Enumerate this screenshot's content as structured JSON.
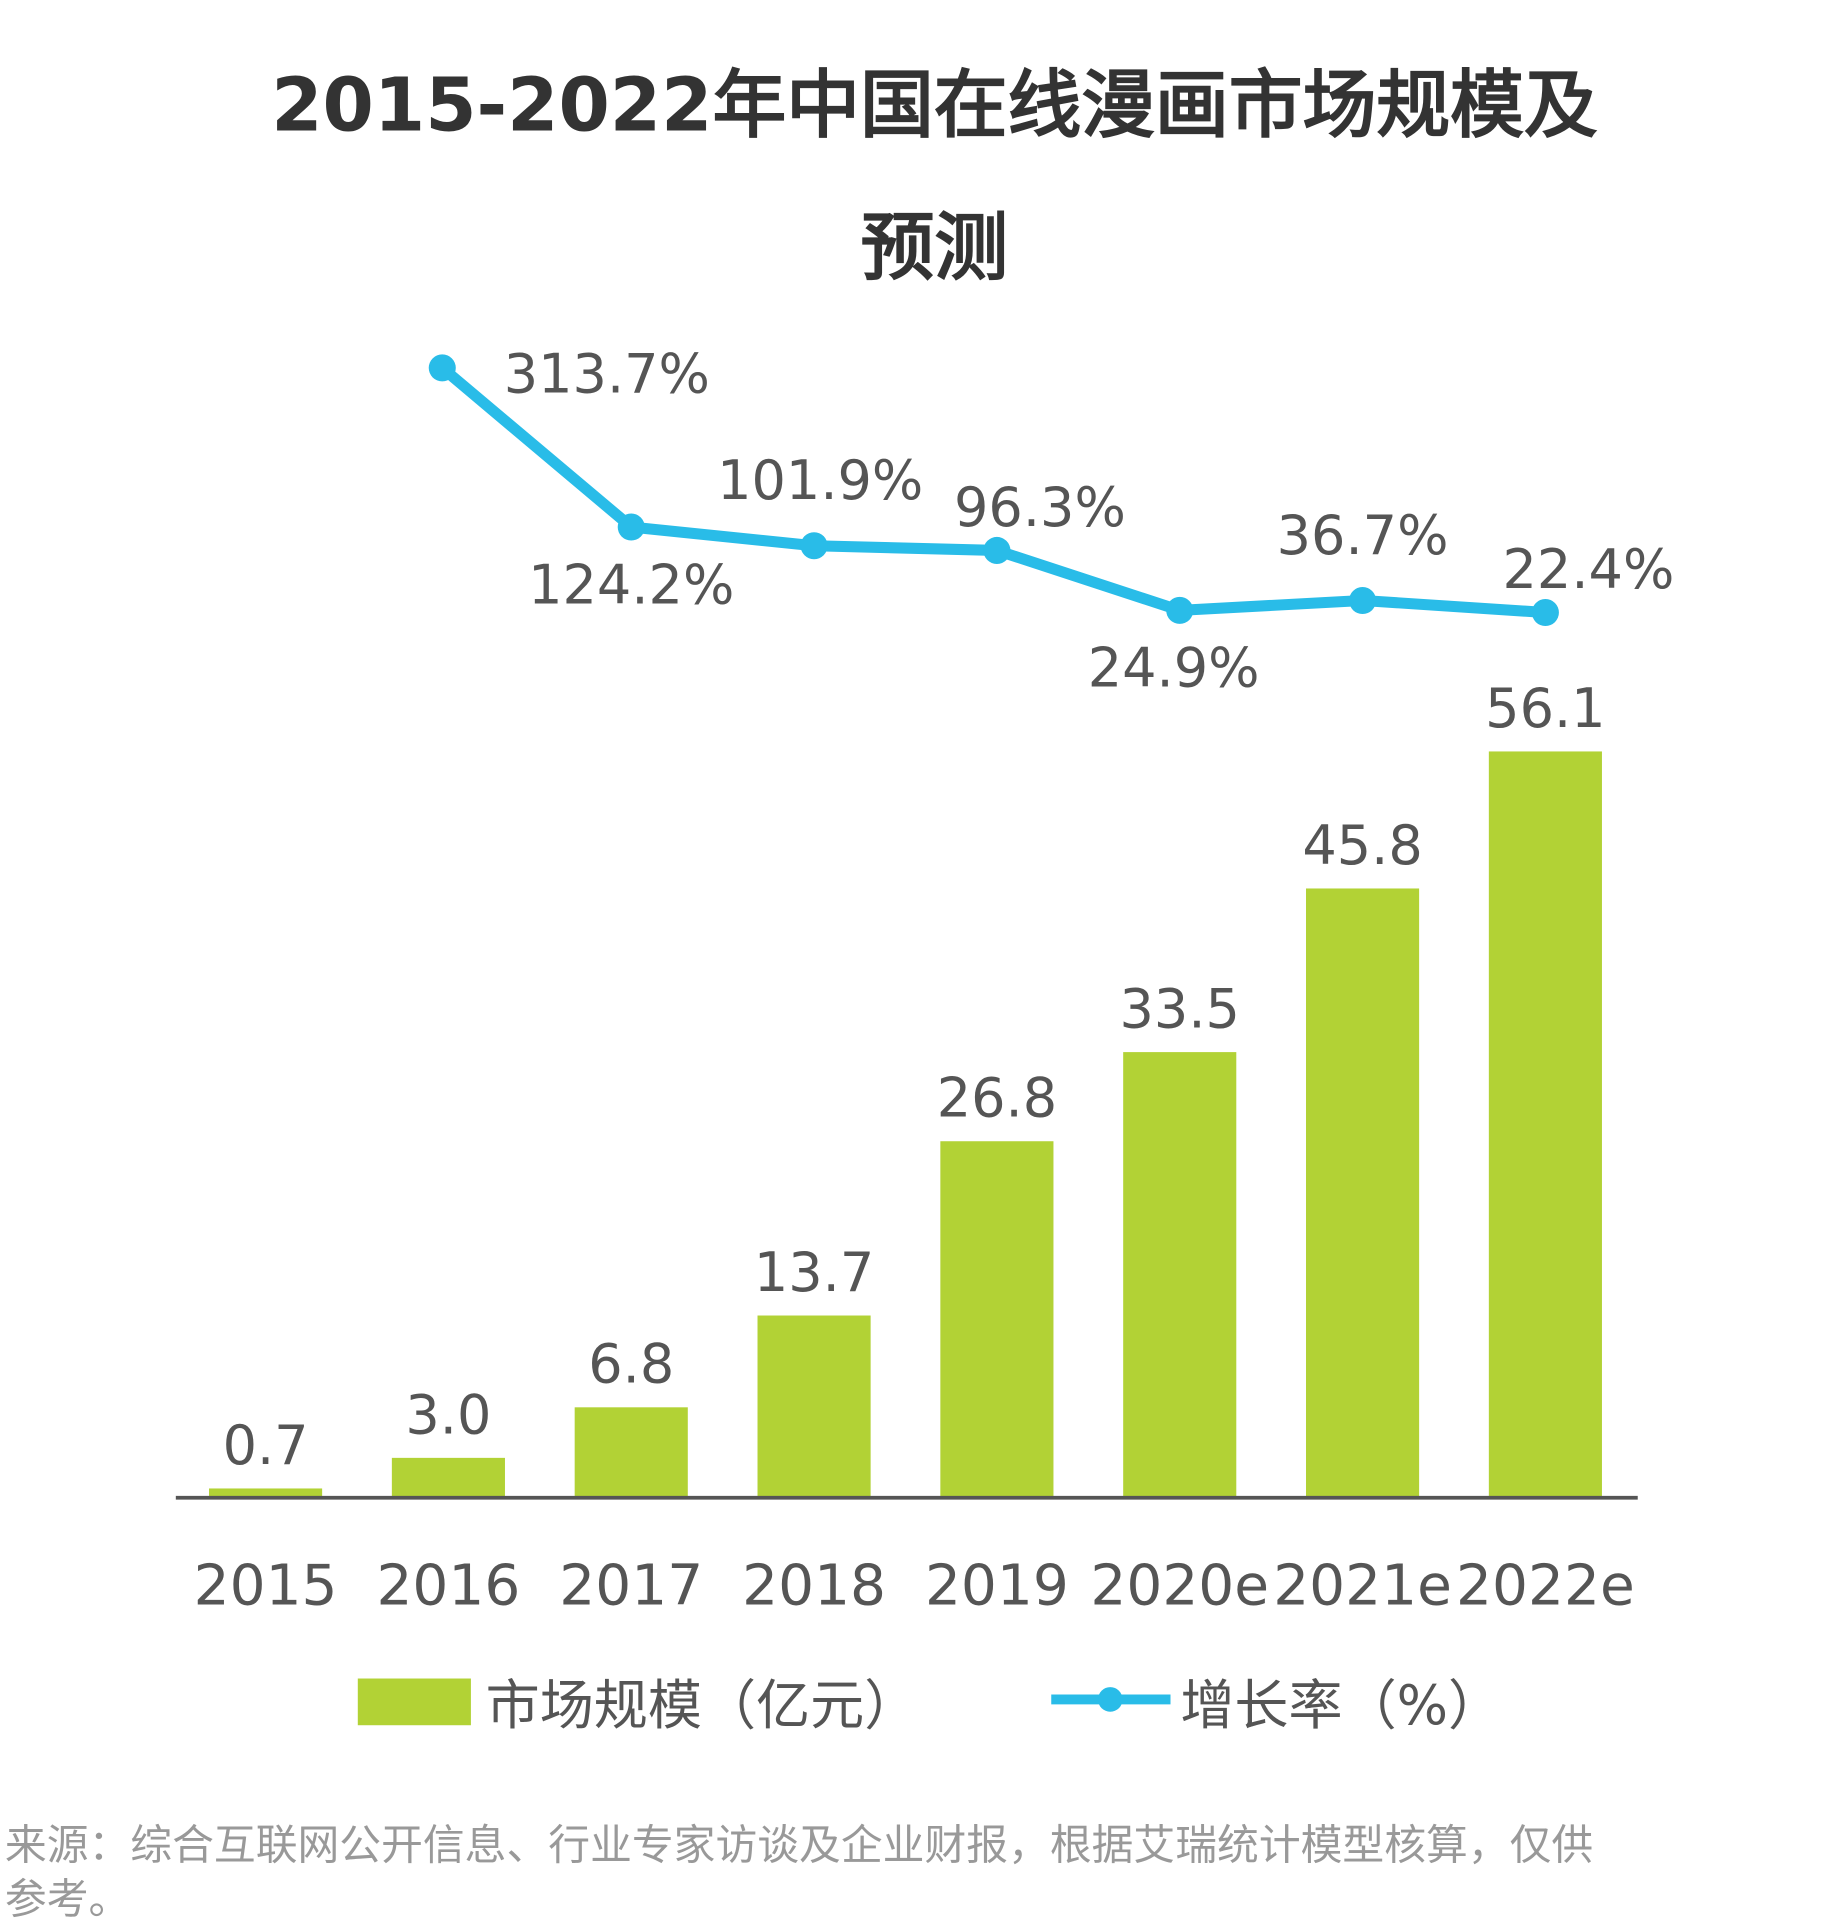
{
  "chart_data": {
    "type": "bar+line",
    "title_line1": "2015-2022年中国在线漫画市场规模及",
    "title_line2": "预测",
    "categories": [
      "2015",
      "2016",
      "2017",
      "2018",
      "2019",
      "2020e",
      "2021e",
      "2022e"
    ],
    "series": [
      {
        "name": "市场规模（亿元）",
        "type": "bar",
        "color": "#b2d235",
        "values": [
          0.7,
          3.0,
          6.8,
          13.7,
          26.8,
          33.5,
          45.8,
          56.1
        ],
        "labels": [
          "0.7",
          "3.0",
          "6.8",
          "13.7",
          "26.8",
          "33.5",
          "45.8",
          "56.1"
        ]
      },
      {
        "name": "增长率（%）",
        "type": "line",
        "color": "#29bce8",
        "values": [
          null,
          313.7,
          124.2,
          101.9,
          96.3,
          24.9,
          36.7,
          22.4
        ],
        "labels": [
          "",
          "313.7%",
          "124.2%",
          "101.9%",
          "96.3%",
          "24.9%",
          "36.7%",
          "22.4%"
        ]
      }
    ],
    "grid": false,
    "legend": "bottom",
    "source": "来源：综合互联网公开信息、行业专家访谈及企业财报，根据艾瑞统计模型核算，仅供",
    "source_line2": "参考。"
  }
}
